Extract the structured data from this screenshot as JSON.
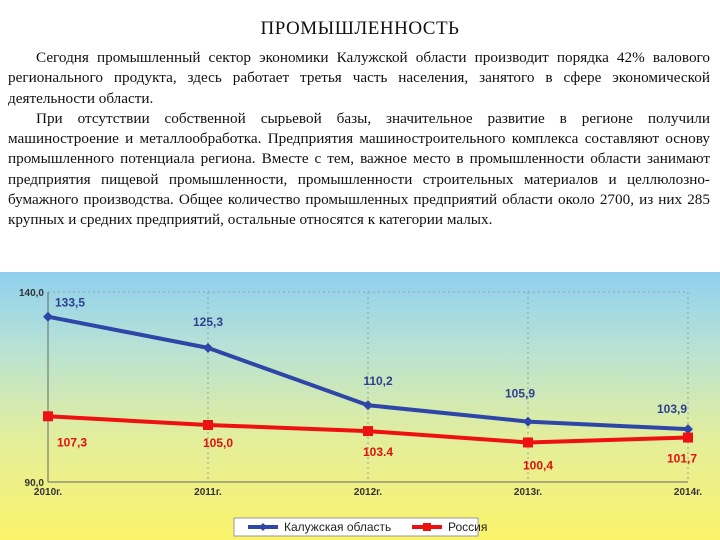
{
  "page": {
    "title": "ПРОМЫШЛЕННОСТЬ",
    "paragraphs": [
      "Сегодня промышленный сектор экономики Калужской области производит порядка 42% валового регионального продукта, здесь работает третья часть населения, занятого в сфере экономической деятельности области.",
      "При отсутствии собственной сырьевой базы, значительное развитие в регионе получили машиностроение и металлообработка. Предприятия машиностроительного комплекса составляют основу промышленного потенциала региона. Вместе с тем, важное место в промышленности области занимают предприятия пищевой промышленности, промышленности строительных материалов и целлюлозно-бумажного производства. Общее количество промышленных предприятий области около 2700, из них 285 крупных и средних предприятий, остальные относятся к категории малых."
    ]
  },
  "chart_data": {
    "type": "line",
    "categories": [
      "2010г.",
      "2011г.",
      "2012г.",
      "2013г.",
      "2014г."
    ],
    "ylim": [
      90,
      140
    ],
    "y_tick_labels": [
      "140,0",
      "90,0"
    ],
    "grid": true,
    "legend_position": "bottom",
    "series": [
      {
        "name": "Калужская область",
        "color": "#2e46a8",
        "marker": "diamond",
        "values": [
          133.5,
          125.3,
          110.2,
          105.9,
          103.9
        ],
        "labels": [
          "133,5",
          "125,3",
          "110,2",
          "105,9",
          "103,9"
        ]
      },
      {
        "name": "Россия",
        "color": "#ee1111",
        "marker": "square",
        "values": [
          107.3,
          105.0,
          103.4,
          100.4,
          101.7
        ],
        "labels": [
          "107,3",
          "105,0",
          "103.4",
          "100,4",
          "101,7"
        ]
      }
    ]
  }
}
